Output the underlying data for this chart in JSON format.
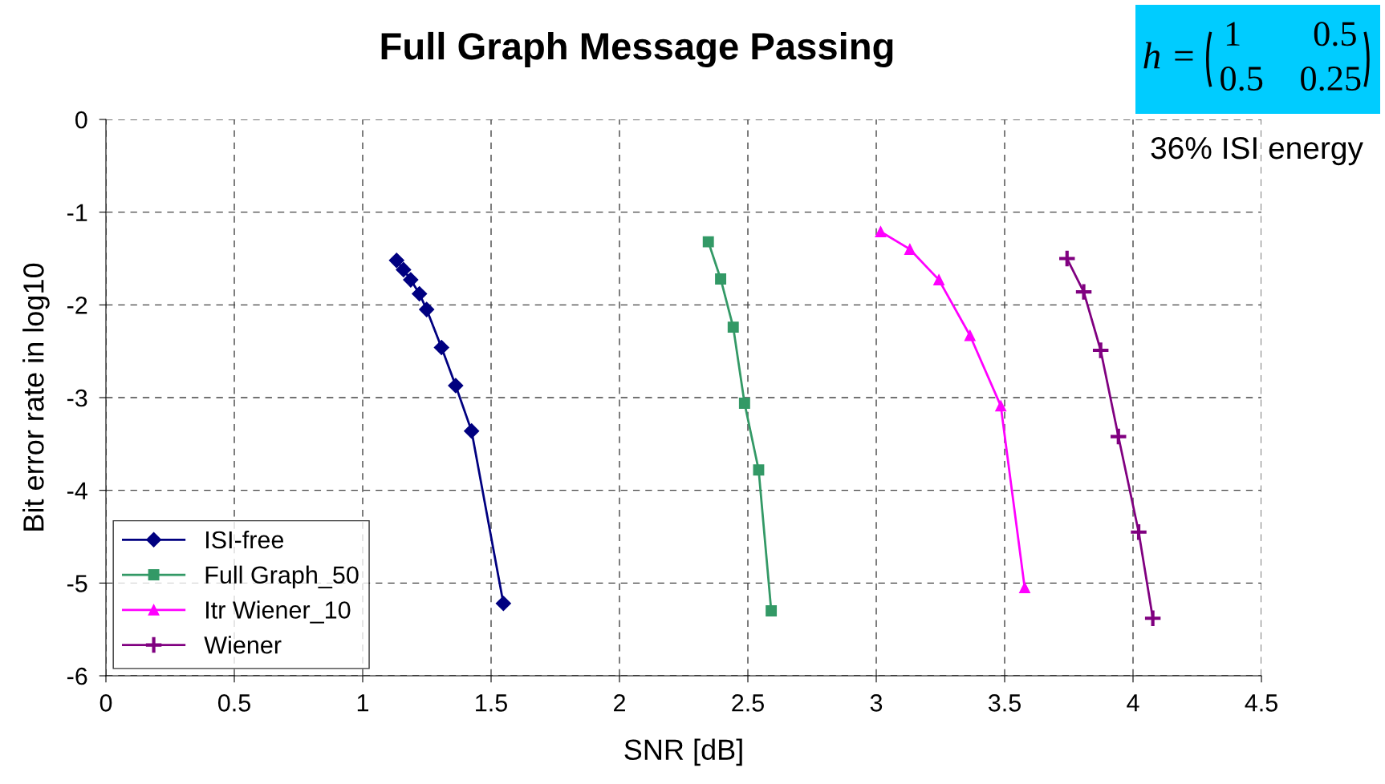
{
  "chart_data": {
    "type": "line",
    "title": "Full Graph Message Passing",
    "xlabel": "SNR [dB]",
    "ylabel": "Bit error rate in log10",
    "xlim": [
      0,
      4.5
    ],
    "xticks": [
      0,
      0.5,
      1,
      1.5,
      2,
      2.5,
      3,
      3.5,
      4,
      4.5
    ],
    "ylim": [
      -6,
      0
    ],
    "yticks": [
      -6,
      -5,
      -4,
      -3,
      -2,
      -1,
      0
    ],
    "grid": true,
    "legend": "bottom left",
    "line_style": "solid",
    "annotations": [
      "h =",
      "1        0.5\n0.5    0.25",
      "36% ISI energy"
    ],
    "series": [
      {
        "name": "ISI-free",
        "color": "#000080",
        "marker": "diamond",
        "x": [
          1.132,
          1.159,
          1.187,
          1.221,
          1.249,
          1.307,
          1.362,
          1.424,
          1.548
        ],
        "values": [
          -1.52,
          -1.62,
          -1.73,
          -1.88,
          -2.05,
          -2.46,
          -2.87,
          -3.36,
          -5.22
        ]
      },
      {
        "name": "Full Graph_50",
        "color": "#339966",
        "marker": "square",
        "x": [
          2.346,
          2.394,
          2.443,
          2.487,
          2.542,
          2.591
        ],
        "values": [
          -1.32,
          -1.72,
          -2.24,
          -3.06,
          -3.78,
          -5.3
        ]
      },
      {
        "name": "Itr Wiener_10",
        "color": "#ff00ff",
        "marker": "triangle",
        "x": [
          3.017,
          3.131,
          3.244,
          3.365,
          3.485,
          3.578
        ],
        "values": [
          -1.21,
          -1.4,
          -1.73,
          -2.33,
          -3.09,
          -5.05
        ]
      },
      {
        "name": "Wiener",
        "color": "#800080",
        "marker": "cross",
        "x": [
          3.743,
          3.808,
          3.874,
          3.943,
          4.022,
          4.077
        ],
        "values": [
          -1.5,
          -1.86,
          -2.49,
          -3.42,
          -4.45,
          -5.38
        ]
      }
    ]
  }
}
